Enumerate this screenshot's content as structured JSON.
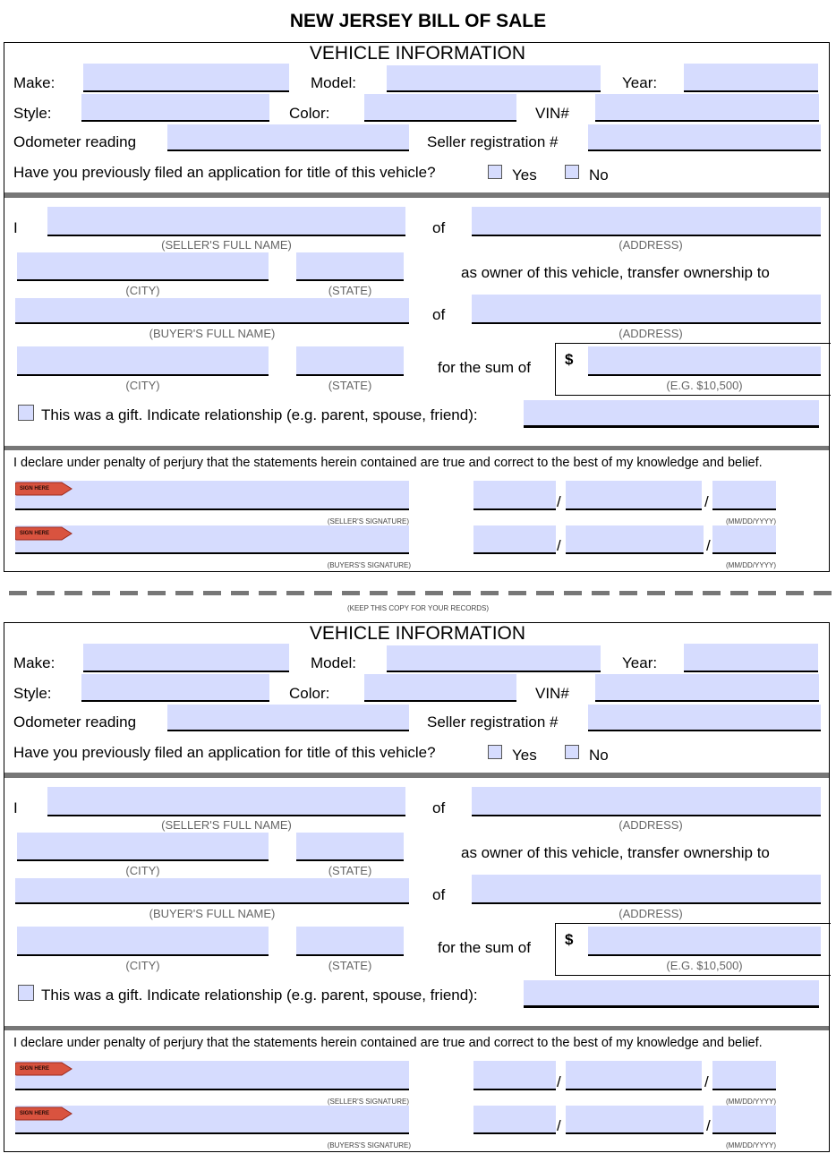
{
  "document_title": "NEW JERSEY BILL OF SALE",
  "section_heading": "VEHICLE INFORMATION",
  "labels": {
    "make": "Make:",
    "model": "Model:",
    "year": "Year:",
    "style": "Style:",
    "color": "Color:",
    "vin": "VIN#",
    "odometer": "Odometer reading",
    "seller_registration": "Seller registration #",
    "title_question": "Have you previously filed an application for title of this vehicle?",
    "yes": "Yes",
    "no": "No",
    "i": "I",
    "of": "of",
    "sellers_full_name": "(SELLER'S FULL NAME)",
    "address": "(ADDRESS)",
    "city": "(CITY)",
    "state": "(STATE)",
    "transfer_text": "as owner of this vehicle, transfer ownership to",
    "buyers_full_name": "(BUYER'S FULL NAME)",
    "for_the_sum_of": "for the sum of",
    "dollar": "$",
    "amount_example": "(E.G. $10,500)",
    "gift_text": "This was a gift. Indicate relationship (e.g. parent, spouse, friend):",
    "declaration": "I declare under penalty of perjury that the statements herein contained are true and correct to the best of my knowledge and belief.",
    "sign_here": "SIGN HERE",
    "sellers_signature": "(SELLER'S SIGNATURE)",
    "buyers_signature": "(BUYERS'S SIGNATURE)",
    "date_format": "(MM/DD/YYYY)",
    "slash": "/"
  },
  "keep_copy_note": "(KEEP THIS COPY FOR YOUR RECORDS)",
  "colors": {
    "field_fill": "#d6dcfe",
    "divider": "#777777",
    "sign_here_arrow": "#d9533f"
  }
}
